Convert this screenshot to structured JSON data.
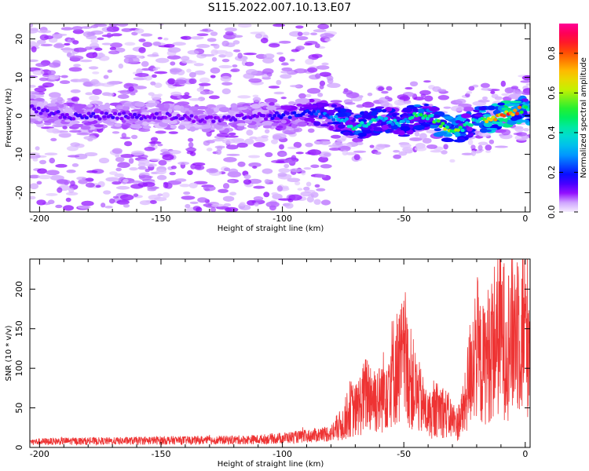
{
  "title": "S115.2022.007.10.13.E07",
  "chart_data": [
    {
      "type": "heatmap",
      "xlabel": "Height of straight line (km)",
      "ylabel": "Frequency (Hz)",
      "xlim": [
        -204,
        2
      ],
      "ylim": [
        -25,
        24
      ],
      "xticks": [
        -200,
        -150,
        -100,
        -50,
        0
      ],
      "yticks": [
        -20,
        -10,
        0,
        10,
        20
      ],
      "colorbar": {
        "label": "Normalized spectral amplitude",
        "range": [
          0,
          0.95
        ],
        "ticks": [
          0.0,
          0.2,
          0.4,
          0.6,
          0.8
        ]
      },
      "ridge": {
        "x": [
          -204,
          -190,
          -170,
          -150,
          -130,
          -110,
          -100,
          -90,
          -80,
          -75,
          -70,
          -60,
          -50,
          -45,
          -40,
          -30,
          -25,
          -20,
          -15,
          -10,
          -5,
          0,
          2
        ],
        "frequency": [
          2,
          0,
          0,
          0,
          -1,
          0,
          0,
          1,
          0,
          -1,
          -3,
          -1,
          -2,
          0,
          0,
          -4,
          -3,
          -1,
          -1,
          0,
          1,
          2,
          1
        ],
        "amplitude": [
          0.12,
          0.15,
          0.15,
          0.13,
          0.12,
          0.14,
          0.18,
          0.22,
          0.3,
          0.38,
          0.45,
          0.4,
          0.35,
          0.5,
          0.5,
          0.65,
          0.5,
          0.4,
          0.8,
          0.85,
          0.95,
          0.55,
          0.6
        ]
      }
    },
    {
      "type": "line",
      "xlabel": "Height of straight line (km)",
      "ylabel": "SNR (10 * v/v)",
      "xlim": [
        -204,
        2
      ],
      "ylim": [
        0,
        238
      ],
      "xticks": [
        -200,
        -150,
        -100,
        -50,
        0
      ],
      "yticks": [
        0,
        50,
        100,
        150,
        200
      ],
      "color": "#ee3333",
      "series": [
        {
          "x": [
            -204,
            -190,
            -170,
            -150,
            -130,
            -110,
            -100,
            -90,
            -80,
            -75,
            -72,
            -70,
            -65,
            -60,
            -55,
            -50,
            -45,
            -40,
            -35,
            -30,
            -28,
            -25,
            -22,
            -20,
            -18,
            -15,
            -12,
            -10,
            -8,
            -5,
            -3,
            -1,
            2
          ],
          "values": [
            7,
            8,
            8,
            9,
            9,
            10,
            12,
            14,
            18,
            30,
            50,
            45,
            70,
            60,
            95,
            110,
            70,
            40,
            50,
            35,
            30,
            50,
            110,
            130,
            100,
            120,
            140,
            150,
            130,
            145,
            160,
            150,
            140
          ]
        }
      ]
    }
  ]
}
